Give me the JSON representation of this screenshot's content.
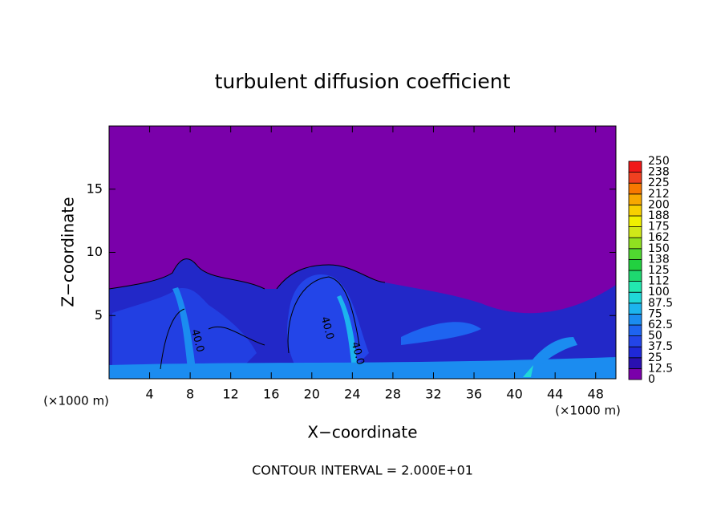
{
  "chart_data": {
    "type": "contour",
    "title": "turbulent diffusion coefficient",
    "x_label": "X−coordinate",
    "y_label": "Z−coordinate",
    "x_unit_left": "(×1000 m)",
    "x_unit_right": "(×1000 m)",
    "footnote": "CONTOUR INTERVAL = 2.000E+01",
    "xlim": [
      0,
      50
    ],
    "xticks": [
      4,
      8,
      12,
      16,
      20,
      24,
      28,
      32,
      36,
      40,
      44,
      48
    ],
    "ylim": [
      0,
      20
    ],
    "yticks": [
      5,
      10,
      15
    ],
    "contour_labels": [
      {
        "label": "40.0",
        "x": 8.7,
        "z": 3
      },
      {
        "label": "40.0",
        "x": 21.5,
        "z": 4
      },
      {
        "label": "40.0",
        "x": 24.5,
        "z": 2
      }
    ],
    "colorbar": {
      "levels": [
        0,
        12.5,
        25,
        37.5,
        50,
        62.5,
        75,
        87.5,
        100,
        112,
        125,
        138,
        150,
        162,
        175,
        188,
        200,
        212,
        225,
        238,
        250
      ],
      "colors": [
        "#7a00aa",
        "#2a10b0",
        "#1f28d8",
        "#2345e8",
        "#1e64f0",
        "#1b8cf0",
        "#1cb4ee",
        "#20d8d8",
        "#22e8b0",
        "#1ed870",
        "#22d040",
        "#50d830",
        "#90e020",
        "#d0e818",
        "#f0f000",
        "#f8d000",
        "#f8a800",
        "#f87800",
        "#f04020",
        "#f01818"
      ]
    }
  }
}
